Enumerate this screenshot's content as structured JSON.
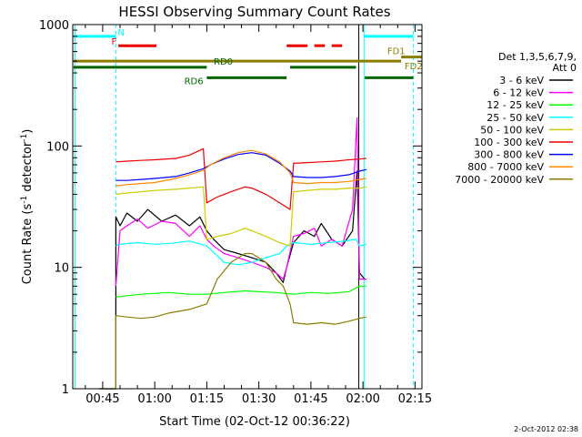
{
  "chart_data": {
    "type": "line",
    "title": "HESSI Observing Summary Count Rates",
    "xlabel": "Start Time (02-Oct-12 00:36:22)",
    "ylabel_main": "Count Rate (s",
    "ylabel_sup1": "-1",
    "ylabel_mid": " detector",
    "ylabel_sup2": "-1",
    "ylabel_end": ")",
    "ylog": true,
    "ylim": [
      1,
      1000
    ],
    "xlim_minutes": [
      36.37,
      137.0
    ],
    "x_ticks": [
      {
        "label": "00:45",
        "minute": 45
      },
      {
        "label": "01:00",
        "minute": 60
      },
      {
        "label": "01:15",
        "minute": 75
      },
      {
        "label": "01:30",
        "minute": 90
      },
      {
        "label": "01:45",
        "minute": 105
      },
      {
        "label": "02:00",
        "minute": 120
      },
      {
        "label": "02:15",
        "minute": 135
      }
    ],
    "y_ticks": [
      {
        "label": "1",
        "value": 1
      },
      {
        "label": "10",
        "value": 10
      },
      {
        "label": "100",
        "value": 100
      },
      {
        "label": "1000",
        "value": 1000
      }
    ],
    "legend_header": [
      "Det 1,3,5,6,7,9,",
      "Att 0"
    ],
    "series": [
      {
        "name": "3 - 6 keV",
        "color": "#000000",
        "points": [
          [
            44,
            0
          ],
          [
            48.8,
            0
          ],
          [
            48.8,
            26
          ],
          [
            50,
            22
          ],
          [
            52,
            28
          ],
          [
            55,
            24
          ],
          [
            58,
            30
          ],
          [
            62,
            24
          ],
          [
            66,
            27
          ],
          [
            70,
            22
          ],
          [
            73,
            26
          ],
          [
            75,
            20
          ],
          [
            77,
            17
          ],
          [
            80,
            14
          ],
          [
            84,
            13
          ],
          [
            88,
            12
          ],
          [
            92,
            11
          ],
          [
            95,
            9
          ],
          [
            97,
            7.5
          ],
          [
            98,
            10
          ],
          [
            100,
            16
          ],
          [
            103,
            20
          ],
          [
            106,
            18
          ],
          [
            108,
            23
          ],
          [
            111,
            17
          ],
          [
            114,
            15
          ],
          [
            117,
            20
          ],
          [
            118.3,
            62
          ],
          [
            119,
            9
          ],
          [
            120.5,
            8
          ],
          [
            121,
            8
          ]
        ]
      },
      {
        "name": "6 - 12 keV",
        "color": "#ff00ff",
        "points": [
          [
            48.8,
            7
          ],
          [
            50,
            20
          ],
          [
            52,
            22
          ],
          [
            55,
            25
          ],
          [
            58,
            21
          ],
          [
            62,
            24
          ],
          [
            66,
            23
          ],
          [
            70,
            18
          ],
          [
            73,
            22
          ],
          [
            75,
            17
          ],
          [
            77,
            15
          ],
          [
            80,
            13
          ],
          [
            84,
            12
          ],
          [
            88,
            11
          ],
          [
            92,
            10
          ],
          [
            95,
            9
          ],
          [
            97,
            8
          ],
          [
            98,
            10
          ],
          [
            100,
            18
          ],
          [
            103,
            19
          ],
          [
            106,
            21
          ],
          [
            108,
            15
          ],
          [
            111,
            17
          ],
          [
            114,
            15
          ],
          [
            117,
            30
          ],
          [
            118.3,
            170
          ],
          [
            119,
            8
          ],
          [
            121,
            8
          ]
        ]
      },
      {
        "name": "12 - 25 keV",
        "color": "#00ff00",
        "points": [
          [
            48.8,
            5.7
          ],
          [
            56,
            6
          ],
          [
            64,
            6.2
          ],
          [
            70,
            6
          ],
          [
            75,
            6
          ],
          [
            80,
            6.2
          ],
          [
            86,
            6.4
          ],
          [
            90,
            6.3
          ],
          [
            95,
            6.2
          ],
          [
            100,
            6
          ],
          [
            105,
            6.2
          ],
          [
            110,
            6.1
          ],
          [
            116,
            6.3
          ],
          [
            119,
            7
          ],
          [
            121,
            7
          ]
        ]
      },
      {
        "name": "25 - 50 keV",
        "color": "#00ffff",
        "points": [
          [
            48.8,
            15
          ],
          [
            50,
            15.5
          ],
          [
            55,
            16
          ],
          [
            60,
            15.5
          ],
          [
            65,
            15.8
          ],
          [
            70,
            16.5
          ],
          [
            75,
            15
          ],
          [
            80,
            11
          ],
          [
            84,
            10.5
          ],
          [
            88,
            11
          ],
          [
            92,
            12
          ],
          [
            96,
            13
          ],
          [
            98,
            15
          ],
          [
            100,
            16
          ],
          [
            105,
            15.5
          ],
          [
            110,
            16
          ],
          [
            115,
            16.5
          ],
          [
            118,
            17
          ],
          [
            119,
            15
          ],
          [
            121,
            15.5
          ]
        ]
      },
      {
        "name": "50 - 100 keV",
        "color": "#cccc00",
        "points": [
          [
            48.8,
            40
          ],
          [
            52,
            41
          ],
          [
            56,
            42
          ],
          [
            60,
            43
          ],
          [
            66,
            44
          ],
          [
            70,
            45
          ],
          [
            74,
            46
          ],
          [
            75,
            17
          ],
          [
            78,
            18
          ],
          [
            82,
            19
          ],
          [
            86,
            21
          ],
          [
            88,
            20
          ],
          [
            92,
            18
          ],
          [
            96,
            16
          ],
          [
            99,
            15
          ],
          [
            100,
            42
          ],
          [
            104,
            43
          ],
          [
            108,
            44
          ],
          [
            112,
            44
          ],
          [
            116,
            45
          ],
          [
            119,
            45
          ],
          [
            121,
            46
          ]
        ]
      },
      {
        "name": "100 - 300 keV",
        "color": "#ee0000",
        "points": [
          [
            48.8,
            74
          ],
          [
            52,
            75
          ],
          [
            56,
            76
          ],
          [
            60,
            77
          ],
          [
            66,
            79
          ],
          [
            70,
            84
          ],
          [
            74,
            95
          ],
          [
            75,
            34
          ],
          [
            78,
            38
          ],
          [
            82,
            42
          ],
          [
            86,
            46
          ],
          [
            88,
            45
          ],
          [
            92,
            40
          ],
          [
            96,
            34
          ],
          [
            99,
            30
          ],
          [
            100,
            72
          ],
          [
            104,
            73
          ],
          [
            108,
            74
          ],
          [
            112,
            75
          ],
          [
            116,
            77
          ],
          [
            119,
            78
          ],
          [
            121,
            79
          ]
        ]
      },
      {
        "name": "300 - 800 keV",
        "color": "#0000ff",
        "points": [
          [
            48.8,
            52
          ],
          [
            52,
            52
          ],
          [
            56,
            53
          ],
          [
            60,
            54
          ],
          [
            66,
            56
          ],
          [
            70,
            60
          ],
          [
            74,
            65
          ],
          [
            76,
            70
          ],
          [
            80,
            78
          ],
          [
            84,
            85
          ],
          [
            88,
            88
          ],
          [
            92,
            84
          ],
          [
            96,
            72
          ],
          [
            99,
            62
          ],
          [
            100,
            56
          ],
          [
            104,
            55
          ],
          [
            108,
            55
          ],
          [
            112,
            56
          ],
          [
            116,
            58
          ],
          [
            119,
            62
          ],
          [
            121,
            64
          ]
        ]
      },
      {
        "name": "800 - 7000 keV",
        "color": "#ff8800",
        "points": [
          [
            48.8,
            47
          ],
          [
            52,
            48
          ],
          [
            56,
            49
          ],
          [
            60,
            50
          ],
          [
            66,
            54
          ],
          [
            70,
            58
          ],
          [
            74,
            63
          ],
          [
            76,
            70
          ],
          [
            80,
            80
          ],
          [
            84,
            88
          ],
          [
            88,
            92
          ],
          [
            92,
            86
          ],
          [
            96,
            74
          ],
          [
            99,
            60
          ],
          [
            100,
            50
          ],
          [
            104,
            49
          ],
          [
            108,
            50
          ],
          [
            112,
            50
          ],
          [
            116,
            51
          ],
          [
            119,
            53
          ],
          [
            121,
            54
          ]
        ]
      },
      {
        "name": "7000 - 20000 keV",
        "color": "#8b7d00",
        "points": [
          [
            44,
            0
          ],
          [
            48.8,
            0
          ],
          [
            48.8,
            4
          ],
          [
            52,
            3.9
          ],
          [
            56,
            3.8
          ],
          [
            60,
            3.9
          ],
          [
            64,
            4.2
          ],
          [
            70,
            4.5
          ],
          [
            75,
            5
          ],
          [
            78,
            8
          ],
          [
            82,
            11
          ],
          [
            86,
            13
          ],
          [
            88,
            13
          ],
          [
            92,
            11
          ],
          [
            95,
            8
          ],
          [
            97,
            7
          ],
          [
            99,
            5
          ],
          [
            100,
            3.5
          ],
          [
            104,
            3.4
          ],
          [
            108,
            3.5
          ],
          [
            112,
            3.4
          ],
          [
            116,
            3.6
          ],
          [
            119,
            3.8
          ],
          [
            121,
            3.9
          ]
        ]
      }
    ],
    "status_bars": [
      {
        "label": "N",
        "color": "#00ffff",
        "y": 800,
        "segments": [
          [
            36.6,
            48.8
          ],
          [
            120.3,
            134.5
          ]
        ]
      },
      {
        "label": "F",
        "color": "#ee0000",
        "y": 670,
        "segments": [
          [
            49.5,
            60.5
          ],
          [
            98,
            104
          ],
          [
            106,
            109
          ],
          [
            111,
            114
          ]
        ]
      },
      {
        "label": "FD1",
        "color": "#8b7d00",
        "y": 540,
        "segments": [
          [
            131,
            137
          ]
        ]
      },
      {
        "label": "FD2",
        "color": "#8b7d00",
        "y": 500,
        "segments": [
          [
            36.6,
            131
          ]
        ]
      },
      {
        "label": "RD0",
        "color": "#006400",
        "y": 445,
        "segments": [
          [
            36.6,
            75
          ],
          [
            99,
            118
          ]
        ]
      },
      {
        "label": "RD6",
        "color": "#006400",
        "y": 365,
        "segments": [
          [
            75,
            98
          ],
          [
            120.5,
            134.5
          ]
        ]
      }
    ],
    "vertical_markers": [
      {
        "minute": 48.8,
        "color": "#00ffff",
        "style": "dashed"
      },
      {
        "minute": 120.3,
        "color": "#00ffff",
        "style": "solid"
      },
      {
        "minute": 134.5,
        "color": "#00ffff",
        "style": "dashed"
      },
      {
        "minute": 37.0,
        "color": "#00ffff",
        "style": "solid"
      },
      {
        "minute": 118.8,
        "color": "#000000",
        "style": "solid"
      }
    ]
  },
  "footer_date": "2-Oct-2012 02:38"
}
